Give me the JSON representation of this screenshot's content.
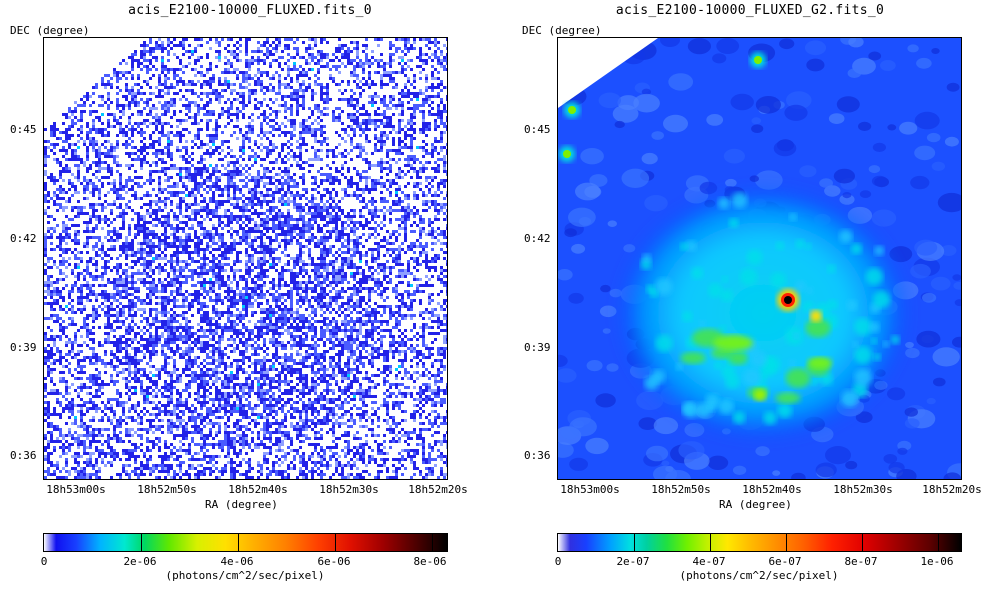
{
  "panels": [
    {
      "title": "acis_E2100-10000_FLUXED.fits_0",
      "ylabel": "DEC (degree)",
      "xlabel": "RA (degree)",
      "yticks": [
        "0:45",
        "0:42",
        "0:39",
        "0:36"
      ],
      "xticks": [
        "18h53m00s",
        "18h52m50s",
        "18h52m40s",
        "18h52m30s",
        "18h52m20s"
      ],
      "colorbar": {
        "ticks": [
          "0",
          "2e-06",
          "4e-06",
          "6e-06",
          "8e-06"
        ],
        "unit": "(photons/cm^2/sec/pixel)"
      }
    },
    {
      "title": "acis_E2100-10000_FLUXED_G2.fits_0",
      "ylabel": "DEC (degree)",
      "xlabel": "RA (degree)",
      "yticks": [
        "0:45",
        "0:42",
        "0:39",
        "0:36"
      ],
      "xticks": [
        "18h53m00s",
        "18h52m50s",
        "18h52m40s",
        "18h52m30s",
        "18h52m20s"
      ],
      "colorbar": {
        "ticks": [
          "0",
          "2e-07",
          "4e-07",
          "6e-07",
          "8e-07",
          "1e-06"
        ],
        "unit": "(photons/cm^2/sec/pixel)"
      }
    }
  ]
}
